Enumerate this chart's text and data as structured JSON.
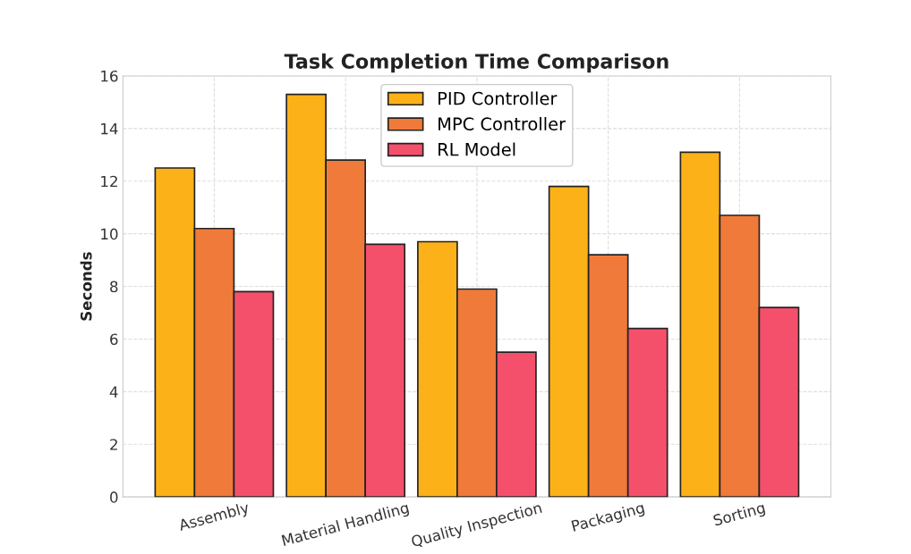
{
  "chart_data": {
    "type": "bar",
    "title": "Task Completion Time Comparison",
    "ylabel": "Seconds",
    "categories": [
      "Assembly",
      "Material Handling",
      "Quality Inspection",
      "Packaging",
      "Sorting"
    ],
    "series": [
      {
        "name": "PID Controller",
        "color": "#fbb117",
        "values": [
          12.5,
          15.3,
          9.7,
          11.8,
          13.1
        ]
      },
      {
        "name": "MPC Controller",
        "color": "#f07a3a",
        "values": [
          10.2,
          12.8,
          7.9,
          9.2,
          10.7
        ]
      },
      {
        "name": "RL Model",
        "color": "#f4506c",
        "values": [
          7.8,
          9.6,
          5.5,
          6.4,
          7.2
        ]
      }
    ],
    "ylim": [
      0,
      16
    ],
    "yticks": [
      0,
      2,
      4,
      6,
      8,
      10,
      12,
      14,
      16
    ],
    "grid": true,
    "legend": "top"
  }
}
